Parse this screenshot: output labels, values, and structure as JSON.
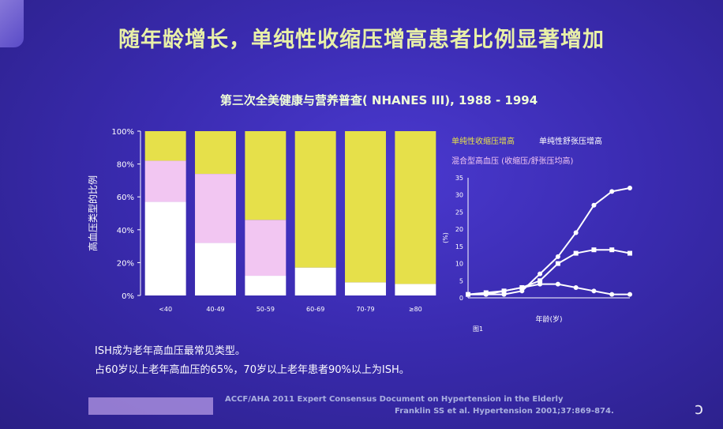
{
  "slide": {
    "title": "随年龄增长，单纯性收缩压增高患者比例显著增加",
    "chart_title": "第三次全美健康与营养普查( NHANES III), 1988 - 1994",
    "footnote": [
      "ISH成为老年高血压最常见类型。",
      "占60岁以上老年高血压的65%，70岁以上老年患者90%以上为ISH。"
    ],
    "citation": [
      "ACCF/AHA 2011 Expert Consensus Document on Hypertension in the Elderly",
      "Franklin SS et al. Hypertension 2001;37:869-874."
    ]
  },
  "colors": {
    "isolated_systolic": "#e6e04a",
    "isolated_diastolic": "#ffffff",
    "combined": "#f2c6f2"
  },
  "legend": {
    "isolated_systolic": "单纯性收缩压增高",
    "isolated_diastolic": "单纯性舒张压增高",
    "combined": "混合型高血压 (收缩压/舒张压均高)"
  },
  "chart_data": [
    {
      "type": "bar",
      "stacked": true,
      "ylabel": "高血压类型的比例",
      "ylim": [
        0,
        100
      ],
      "yticks": [
        "0%",
        "20%",
        "40%",
        "60%",
        "80%",
        "100%"
      ],
      "categories": [
        "<40",
        "40-49",
        "50-59",
        "60-69",
        "70-79",
        "≥80"
      ],
      "series": [
        {
          "name": "单纯性舒张压增高",
          "values": [
            57,
            32,
            12,
            17,
            8,
            7
          ]
        },
        {
          "name": "混合型高血压 (收缩压/舒张压均高)",
          "values": [
            25,
            42,
            34,
            0,
            0,
            0
          ]
        },
        {
          "name": "单纯性收缩压增高",
          "values": [
            18,
            26,
            54,
            83,
            92,
            93
          ]
        }
      ]
    },
    {
      "type": "line",
      "ylabel": "(%)",
      "xlabel": "年龄(岁)",
      "caption": "图1",
      "ylim": [
        0,
        35
      ],
      "yticks": [
        0,
        5,
        10,
        15,
        20,
        25,
        30,
        35
      ],
      "x": [
        1,
        2,
        3,
        4,
        5,
        6,
        7,
        8,
        9,
        10
      ],
      "series": [
        {
          "values": [
            1,
            1,
            1,
            2,
            7,
            12,
            19,
            27,
            31,
            32
          ]
        },
        {
          "values": [
            1,
            1.5,
            2,
            3,
            5,
            10,
            13,
            14,
            14,
            13
          ]
        },
        {
          "values": [
            1,
            1,
            2,
            3,
            4,
            4,
            3,
            2,
            1,
            1
          ]
        }
      ]
    }
  ]
}
